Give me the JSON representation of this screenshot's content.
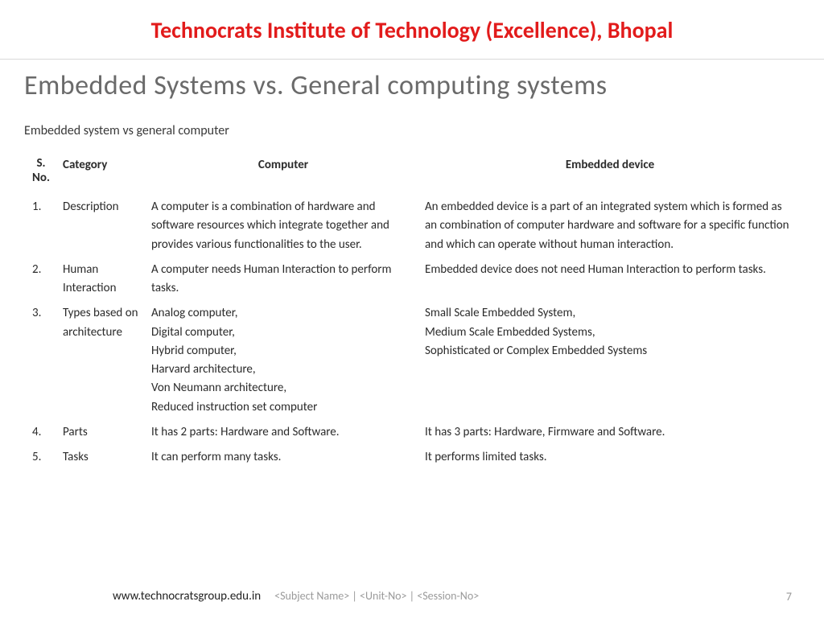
{
  "header": {
    "institute": "Technocrats Institute of Technology (Excellence), Bhopal"
  },
  "slide": {
    "title": "Embedded Systems vs. General computing systems",
    "subtitle": "Embedded system vs general computer"
  },
  "table": {
    "columns": {
      "sno": "S. No.",
      "category": "Category",
      "computer": "Computer",
      "embedded": "Embedded device"
    },
    "rows": [
      {
        "sno": "1.",
        "category": "Description",
        "computer": "A computer is a combination of hardware and software resources which integrate together and provides various functionalities to the user.",
        "embedded": "An embedded device is a part of an integrated system which is formed as an combination of computer hardware and software for a specific function and which can operate without human interaction."
      },
      {
        "sno": "2.",
        "category": "Human Interaction",
        "computer": "A computer needs Human Interaction to perform tasks.",
        "embedded": "Embedded device does not need Human Interaction to perform tasks."
      },
      {
        "sno": "3.",
        "category": "Types based on architecture",
        "computer": "Analog computer,\nDigital computer,\nHybrid computer,\nHarvard architecture,\nVon Neumann architecture,\nReduced instruction set computer",
        "embedded": "Small Scale Embedded System,\nMedium Scale Embedded Systems,\nSophisticated or Complex Embedded Systems"
      },
      {
        "sno": "4.",
        "category": "Parts",
        "computer": "It has 2 parts: Hardware and Software.",
        "embedded": "It has 3 parts: Hardware, Firmware and Software."
      },
      {
        "sno": "5.",
        "category": "Tasks",
        "computer": "It can perform many tasks.",
        "embedded": "It performs limited tasks."
      }
    ]
  },
  "footer": {
    "url": "www.technocratsgroup.edu.in",
    "meta": "<Subject Name> | <Unit-No> | <Session-No>",
    "page": "7"
  },
  "style": {
    "title_color": "#e21b1b",
    "slide_title_color": "#6a6a6a",
    "body_text_color": "#2b2b2b",
    "footer_gray": "#9a9a9a",
    "background": "#ffffff",
    "divider_color": "#d8d8d8",
    "title_fontsize": 28,
    "slide_title_fontsize": 34,
    "body_fontsize": 15
  }
}
